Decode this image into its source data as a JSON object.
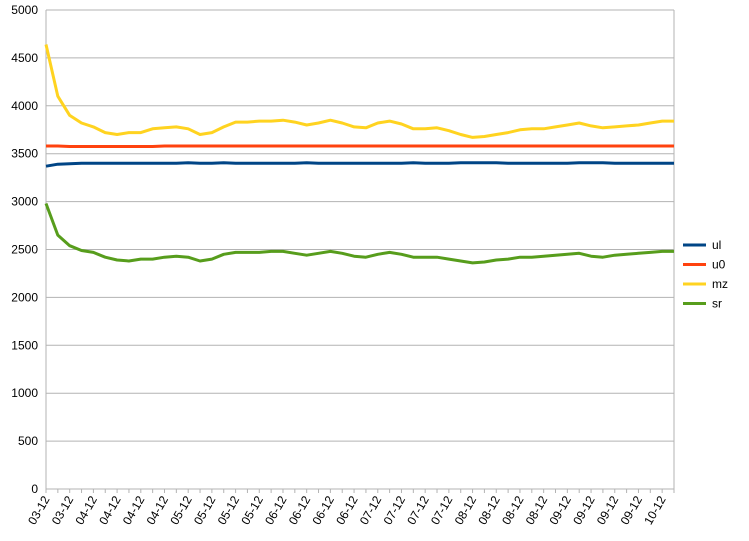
{
  "chart_data": {
    "type": "line",
    "categories": [
      "03-12",
      null,
      "03-12",
      null,
      "04-12",
      null,
      "04-12",
      null,
      "04-12",
      null,
      "04-12",
      null,
      "05-12",
      null,
      "05-12",
      null,
      "05-12",
      null,
      "05-12",
      null,
      "06-12",
      null,
      "06-12",
      null,
      "06-12",
      null,
      "06-12",
      null,
      "07-12",
      null,
      "07-12",
      null,
      "07-12",
      null,
      "07-12",
      null,
      "08-12",
      null,
      "08-12",
      null,
      "08-12",
      null,
      "08-12",
      null,
      "09-12",
      null,
      "09-12",
      null,
      "09-12",
      null,
      "09-12",
      null,
      "10-12",
      null
    ],
    "series": [
      {
        "name": "ul",
        "color": "#004586",
        "values": [
          3370,
          3390,
          3395,
          3400,
          3400,
          3400,
          3400,
          3400,
          3400,
          3400,
          3400,
          3400,
          3405,
          3400,
          3400,
          3405,
          3400,
          3400,
          3400,
          3400,
          3400,
          3400,
          3405,
          3400,
          3400,
          3400,
          3400,
          3400,
          3400,
          3400,
          3400,
          3405,
          3400,
          3400,
          3400,
          3405,
          3405,
          3405,
          3405,
          3400,
          3400,
          3400,
          3400,
          3400,
          3400,
          3405,
          3405,
          3405,
          3400,
          3400,
          3400,
          3400,
          3400,
          3400
        ]
      },
      {
        "name": "u0",
        "color": "#ff420e",
        "values": [
          3580,
          3580,
          3575,
          3575,
          3575,
          3575,
          3575,
          3575,
          3575,
          3575,
          3580,
          3580,
          3580,
          3580,
          3580,
          3580,
          3580,
          3580,
          3580,
          3580,
          3580,
          3580,
          3580,
          3580,
          3580,
          3580,
          3580,
          3580,
          3580,
          3580,
          3580,
          3580,
          3580,
          3580,
          3580,
          3580,
          3580,
          3580,
          3580,
          3580,
          3580,
          3580,
          3580,
          3580,
          3580,
          3580,
          3580,
          3580,
          3580,
          3580,
          3580,
          3580,
          3580,
          3580
        ]
      },
      {
        "name": "mz",
        "color": "#ffd320",
        "values": [
          4640,
          4100,
          3900,
          3820,
          3780,
          3720,
          3700,
          3720,
          3720,
          3760,
          3770,
          3780,
          3760,
          3700,
          3720,
          3780,
          3830,
          3830,
          3840,
          3840,
          3850,
          3830,
          3800,
          3820,
          3850,
          3820,
          3780,
          3770,
          3820,
          3840,
          3810,
          3760,
          3760,
          3770,
          3740,
          3700,
          3670,
          3680,
          3700,
          3720,
          3750,
          3760,
          3760,
          3780,
          3800,
          3820,
          3790,
          3770,
          3780,
          3790,
          3800,
          3820,
          3840,
          3840
        ]
      },
      {
        "name": "sr",
        "color": "#579d1c",
        "values": [
          2980,
          2650,
          2540,
          2490,
          2470,
          2420,
          2390,
          2380,
          2400,
          2400,
          2420,
          2430,
          2420,
          2380,
          2400,
          2450,
          2470,
          2470,
          2470,
          2480,
          2480,
          2460,
          2440,
          2460,
          2480,
          2460,
          2430,
          2420,
          2450,
          2470,
          2450,
          2420,
          2420,
          2420,
          2400,
          2380,
          2360,
          2370,
          2390,
          2400,
          2420,
          2420,
          2430,
          2440,
          2450,
          2460,
          2430,
          2420,
          2440,
          2450,
          2460,
          2470,
          2480,
          2480
        ]
      }
    ],
    "ylim": [
      0,
      5000
    ],
    "yticks": [
      0,
      500,
      1000,
      1500,
      2000,
      2500,
      3000,
      3500,
      4000,
      4500,
      5000
    ],
    "grid": true,
    "legend": "right"
  }
}
